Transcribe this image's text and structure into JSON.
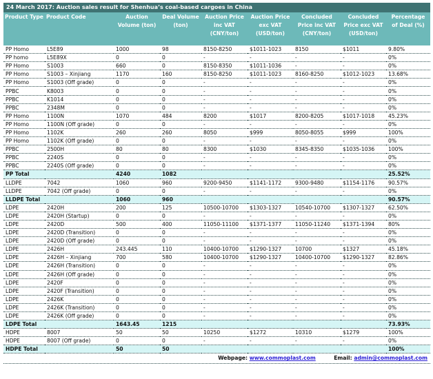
{
  "title": "24 March 2017: Auction sales result for Shenhua’s coal-based cargoes in China",
  "columns": [
    "Product Type",
    "Product Code",
    "Auction Volume (ton)",
    "Deal Volume (ton)",
    "Auction Price inc VAT (CNY/ton)",
    "Auction Price exc VAT (USD/ton)",
    "Concluded Price inc VAT (CNY/ton)",
    "Concluded Price exc VAT (USD/ton)",
    "Percentage of Deal (%)"
  ],
  "rows": [
    [
      "PP Homo",
      "L5E89",
      "1000",
      "98",
      "8150-8250",
      "$1011-1023",
      "8150",
      "$1011",
      "9.80%"
    ],
    [
      "PP homo",
      "L5E89X",
      "0",
      "0",
      "-",
      "-",
      "-",
      "-",
      "0%"
    ],
    [
      "PP Homo",
      "S1003",
      "660",
      "0",
      "8150-8350",
      "$1011-1036",
      "-",
      "-",
      "0%"
    ],
    [
      "PP Homo",
      "S1003 – Xinjiang",
      "1170",
      "160",
      "8150-8250",
      "$1011-1023",
      "8160-8250",
      "$1012-1023",
      "13.68%"
    ],
    [
      "PP Homo",
      "S1003 (Off grade)",
      "0",
      "0",
      "-",
      "-",
      "-",
      "-",
      "0%"
    ],
    [
      "PPBC",
      "K8003",
      "0",
      "0",
      "-",
      "-",
      "-",
      "-",
      "0%"
    ],
    [
      "PPBC",
      "K1014",
      "0",
      "0",
      "-",
      "-",
      "-",
      "-",
      "0%"
    ],
    [
      "PPBC",
      "2348M",
      "0",
      "0",
      "-",
      "-",
      "-",
      "-",
      "0%"
    ],
    [
      "PP Homo",
      "1100N",
      "1070",
      "484",
      "8200",
      "$1017",
      "8200-8205",
      "$1017-1018",
      "45.23%"
    ],
    [
      "PP Homo",
      "1100N (Off grade)",
      "0",
      "0",
      "-",
      "-",
      "-",
      "-",
      "0%"
    ],
    [
      "PP Homo",
      "1102K",
      "260",
      "260",
      "8050",
      "$999",
      "8050-8055",
      "$999",
      "100%"
    ],
    [
      "PP Homo",
      "1102K (Off grade)",
      "0",
      "0",
      "-",
      "-",
      "-",
      "-",
      "0%"
    ],
    [
      "PPBC",
      "2500H",
      "80",
      "80",
      "8300",
      "$1030",
      "8345-8350",
      "$1035-1036",
      "100%"
    ],
    [
      "PPBC",
      "2240S",
      "0",
      "0",
      "-",
      "-",
      "-",
      "-",
      "0%"
    ],
    [
      "PPBC",
      "2240S (Off grade)",
      "0",
      "0",
      "-",
      "-",
      "-",
      "-",
      "0%"
    ],
    [
      "PP Total",
      "",
      "4240",
      "1082",
      "",
      "",
      "",
      "",
      "25.52%"
    ],
    [
      "LLDPE",
      "7042",
      "1060",
      "960",
      "9200-9450",
      "$1141-1172",
      "9300-9480",
      "$1154-1176",
      "90.57%"
    ],
    [
      "LLDPE",
      "7042 (Off grade)",
      "0",
      "0",
      "-",
      "-",
      "-",
      "-",
      "0%"
    ],
    [
      "LLDPE Total",
      "",
      "1060",
      "960",
      "",
      "",
      "",
      "",
      "90.57%"
    ],
    [
      "LDPE",
      "2420H",
      "200",
      "125",
      "10500-10700",
      "$1303-1327",
      "10540-10700",
      "$1307-1327",
      "62.50%"
    ],
    [
      "LDPE",
      "2420H (Startup)",
      "0",
      "0",
      "-",
      "-",
      "-",
      "-",
      "0%"
    ],
    [
      "LDPE",
      "2420D",
      "500",
      "400",
      "11050-11100",
      "$1371-1377",
      "11050-11240",
      "$1371-1394",
      "80%"
    ],
    [
      "LDPE",
      "2420D (Transition)",
      "0",
      "0",
      "-",
      "-",
      "-",
      "-",
      "0%"
    ],
    [
      "LDPE",
      "2420D (Off grade)",
      "0",
      "0",
      "-",
      "-",
      "-",
      "-",
      "0%"
    ],
    [
      "LDPE",
      "2426H",
      "243.445",
      "110",
      "10400-10700",
      "$1290-1327",
      "10700",
      "$1327",
      "45.18%"
    ],
    [
      "LDPE",
      "2426H – Xinjiang",
      "700",
      "580",
      "10400-10700",
      "$1290-1327",
      "10400-10700",
      "$1290-1327",
      "82.86%"
    ],
    [
      "LDPE",
      "2426H (Transition)",
      "0",
      "0",
      "-",
      "-",
      "-",
      "-",
      "0%"
    ],
    [
      "LDPE",
      "2426H (Off grade)",
      "0",
      "0",
      "-",
      "-",
      "-",
      "-",
      "0%"
    ],
    [
      "LDPE",
      "2420F",
      "0",
      "0",
      "-",
      "-",
      "-",
      "-",
      "0%"
    ],
    [
      "LDPE",
      "2420F (Transition)",
      "0",
      "0",
      "-",
      "-",
      "-",
      "-",
      "0%"
    ],
    [
      "LDPE",
      "2426K",
      "0",
      "0",
      "-",
      "-",
      "-",
      "-",
      "0%"
    ],
    [
      "LDPE",
      "2426K (Transition)",
      "0",
      "0",
      "-",
      "-",
      "-",
      "-",
      "0%"
    ],
    [
      "LDPE",
      "2426K (Off grade)",
      "0",
      "0",
      "-",
      "-",
      "-",
      "-",
      "0%"
    ],
    [
      "LDPE Total",
      "",
      "1643.45",
      "1215",
      "",
      "",
      "",
      "",
      "73.93%"
    ],
    [
      "HDPE",
      "8007",
      "50",
      "50",
      "10250",
      "$1272",
      "10310",
      "$1279",
      "100%"
    ],
    [
      "HDPE",
      "8007 (Off grade)",
      "0",
      "0",
      "-",
      "-",
      "-",
      "-",
      "0%"
    ],
    [
      "HDPE Total",
      "",
      "50",
      "50",
      "",
      "",
      "",
      "",
      "100%"
    ]
  ],
  "footer": {
    "web_label": "Webpage:",
    "web": "www.commoplast.com",
    "email_label": "Email:",
    "email": "admin@commoplast.com"
  }
}
